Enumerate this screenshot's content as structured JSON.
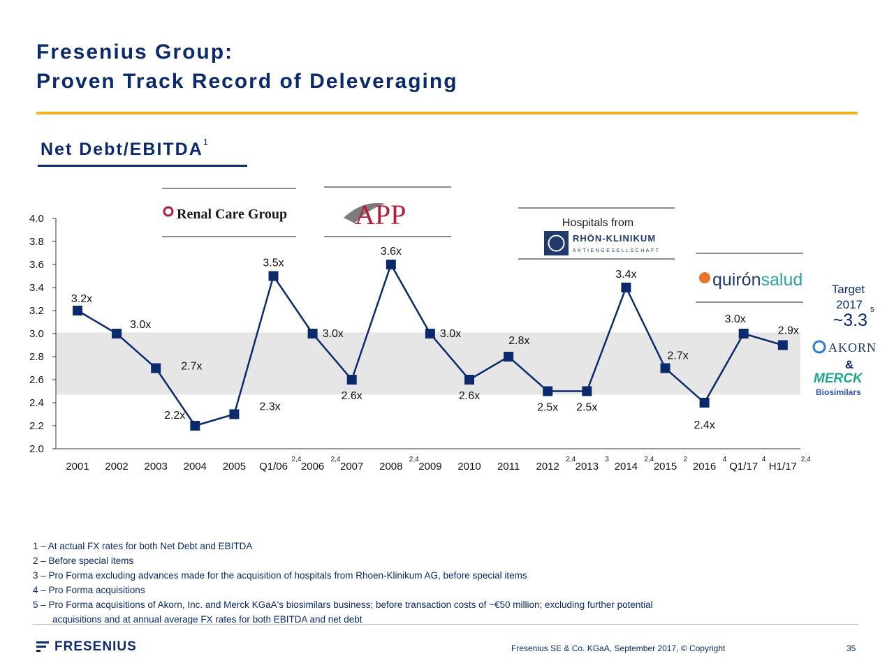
{
  "slide": {
    "title_line1": "Fresenius Group:",
    "title_line2": "Proven Track Record of Deleveraging",
    "subtitle": "Net Debt/EBITDA",
    "subtitle_sup": "1"
  },
  "chart_data": {
    "type": "line",
    "ylim": [
      2.0,
      4.0
    ],
    "yticks": [
      "4.0",
      "3.8",
      "3.6",
      "3.4",
      "3.2",
      "3.0",
      "2.8",
      "2.6",
      "2.4",
      "2.2",
      "2.0"
    ],
    "target_band": [
      2.47,
      3.01
    ],
    "categories": [
      "2001",
      "2002",
      "2003",
      "2004",
      "2005",
      "Q1/06",
      "2006",
      "2007",
      "2008",
      "2009",
      "2010",
      "2011",
      "2012",
      "2013",
      "2014",
      "2015",
      "2016",
      "Q1/17",
      "H1/17"
    ],
    "category_sups": [
      "",
      "",
      "",
      "",
      "",
      "2,4",
      "2,4",
      "",
      "2,4",
      "",
      "",
      "",
      "2,4",
      "3",
      "2,4",
      "2",
      "4",
      "4",
      "2,4"
    ],
    "values": [
      3.2,
      3.0,
      2.7,
      2.2,
      2.3,
      3.5,
      3.0,
      2.6,
      3.6,
      3.0,
      2.6,
      2.8,
      2.5,
      2.5,
      3.4,
      2.7,
      2.4,
      3.0,
      2.9
    ],
    "data_labels": [
      "3.2x",
      "3.0x",
      "2.7x",
      "2.2x",
      "2.3x",
      "3.5x",
      "3.0x",
      "2.6x",
      "3.6x",
      "3.0x",
      "2.6x",
      "2.8x",
      "2.5x",
      "2.5x",
      "3.4x",
      "2.7x",
      "2.4x",
      "3.0x",
      "2.9x"
    ],
    "line_color": "#0a2a6b",
    "band_color": "#e6e6e6"
  },
  "target": {
    "label_line1": "Target",
    "label_line2": "2017",
    "sup": "5",
    "value": "~3.3",
    "color": "#0a2a6b"
  },
  "logos": {
    "renal_care": "Renal Care Group",
    "app": "APP",
    "hospitals_from": "Hospitals from",
    "rhoen_name": "RHÖN-KLINIKUM",
    "rhoen_sub": "AKTIENGESELLSCHAFT",
    "quiron_a": "quirón",
    "quiron_b": "salud",
    "akorn": "AKORN",
    "ampersand": "&",
    "merck": "MERCK",
    "biosimilars": "Biosimilars"
  },
  "footnotes": [
    "1 – At actual FX rates for both Net Debt and EBITDA",
    "2 – Before special items",
    "3 – Pro Forma excluding advances made for the acquisition of hospitals from Rhoen-Klinikum AG, before special items",
    "4 – Pro Forma acquisitions",
    "5 – Pro Forma acquisitions of Akorn, Inc. and Merck KGaA's biosimilars business; before transaction costs of ~€50 million; excluding further potential",
    "acquisitions and at annual average FX rates for both EBITDA and net debt"
  ],
  "footer": {
    "brand": "FRESENIUS",
    "copyright": "Fresenius SE & Co. KGaA, September 2017, © Copyright",
    "page": "35"
  }
}
